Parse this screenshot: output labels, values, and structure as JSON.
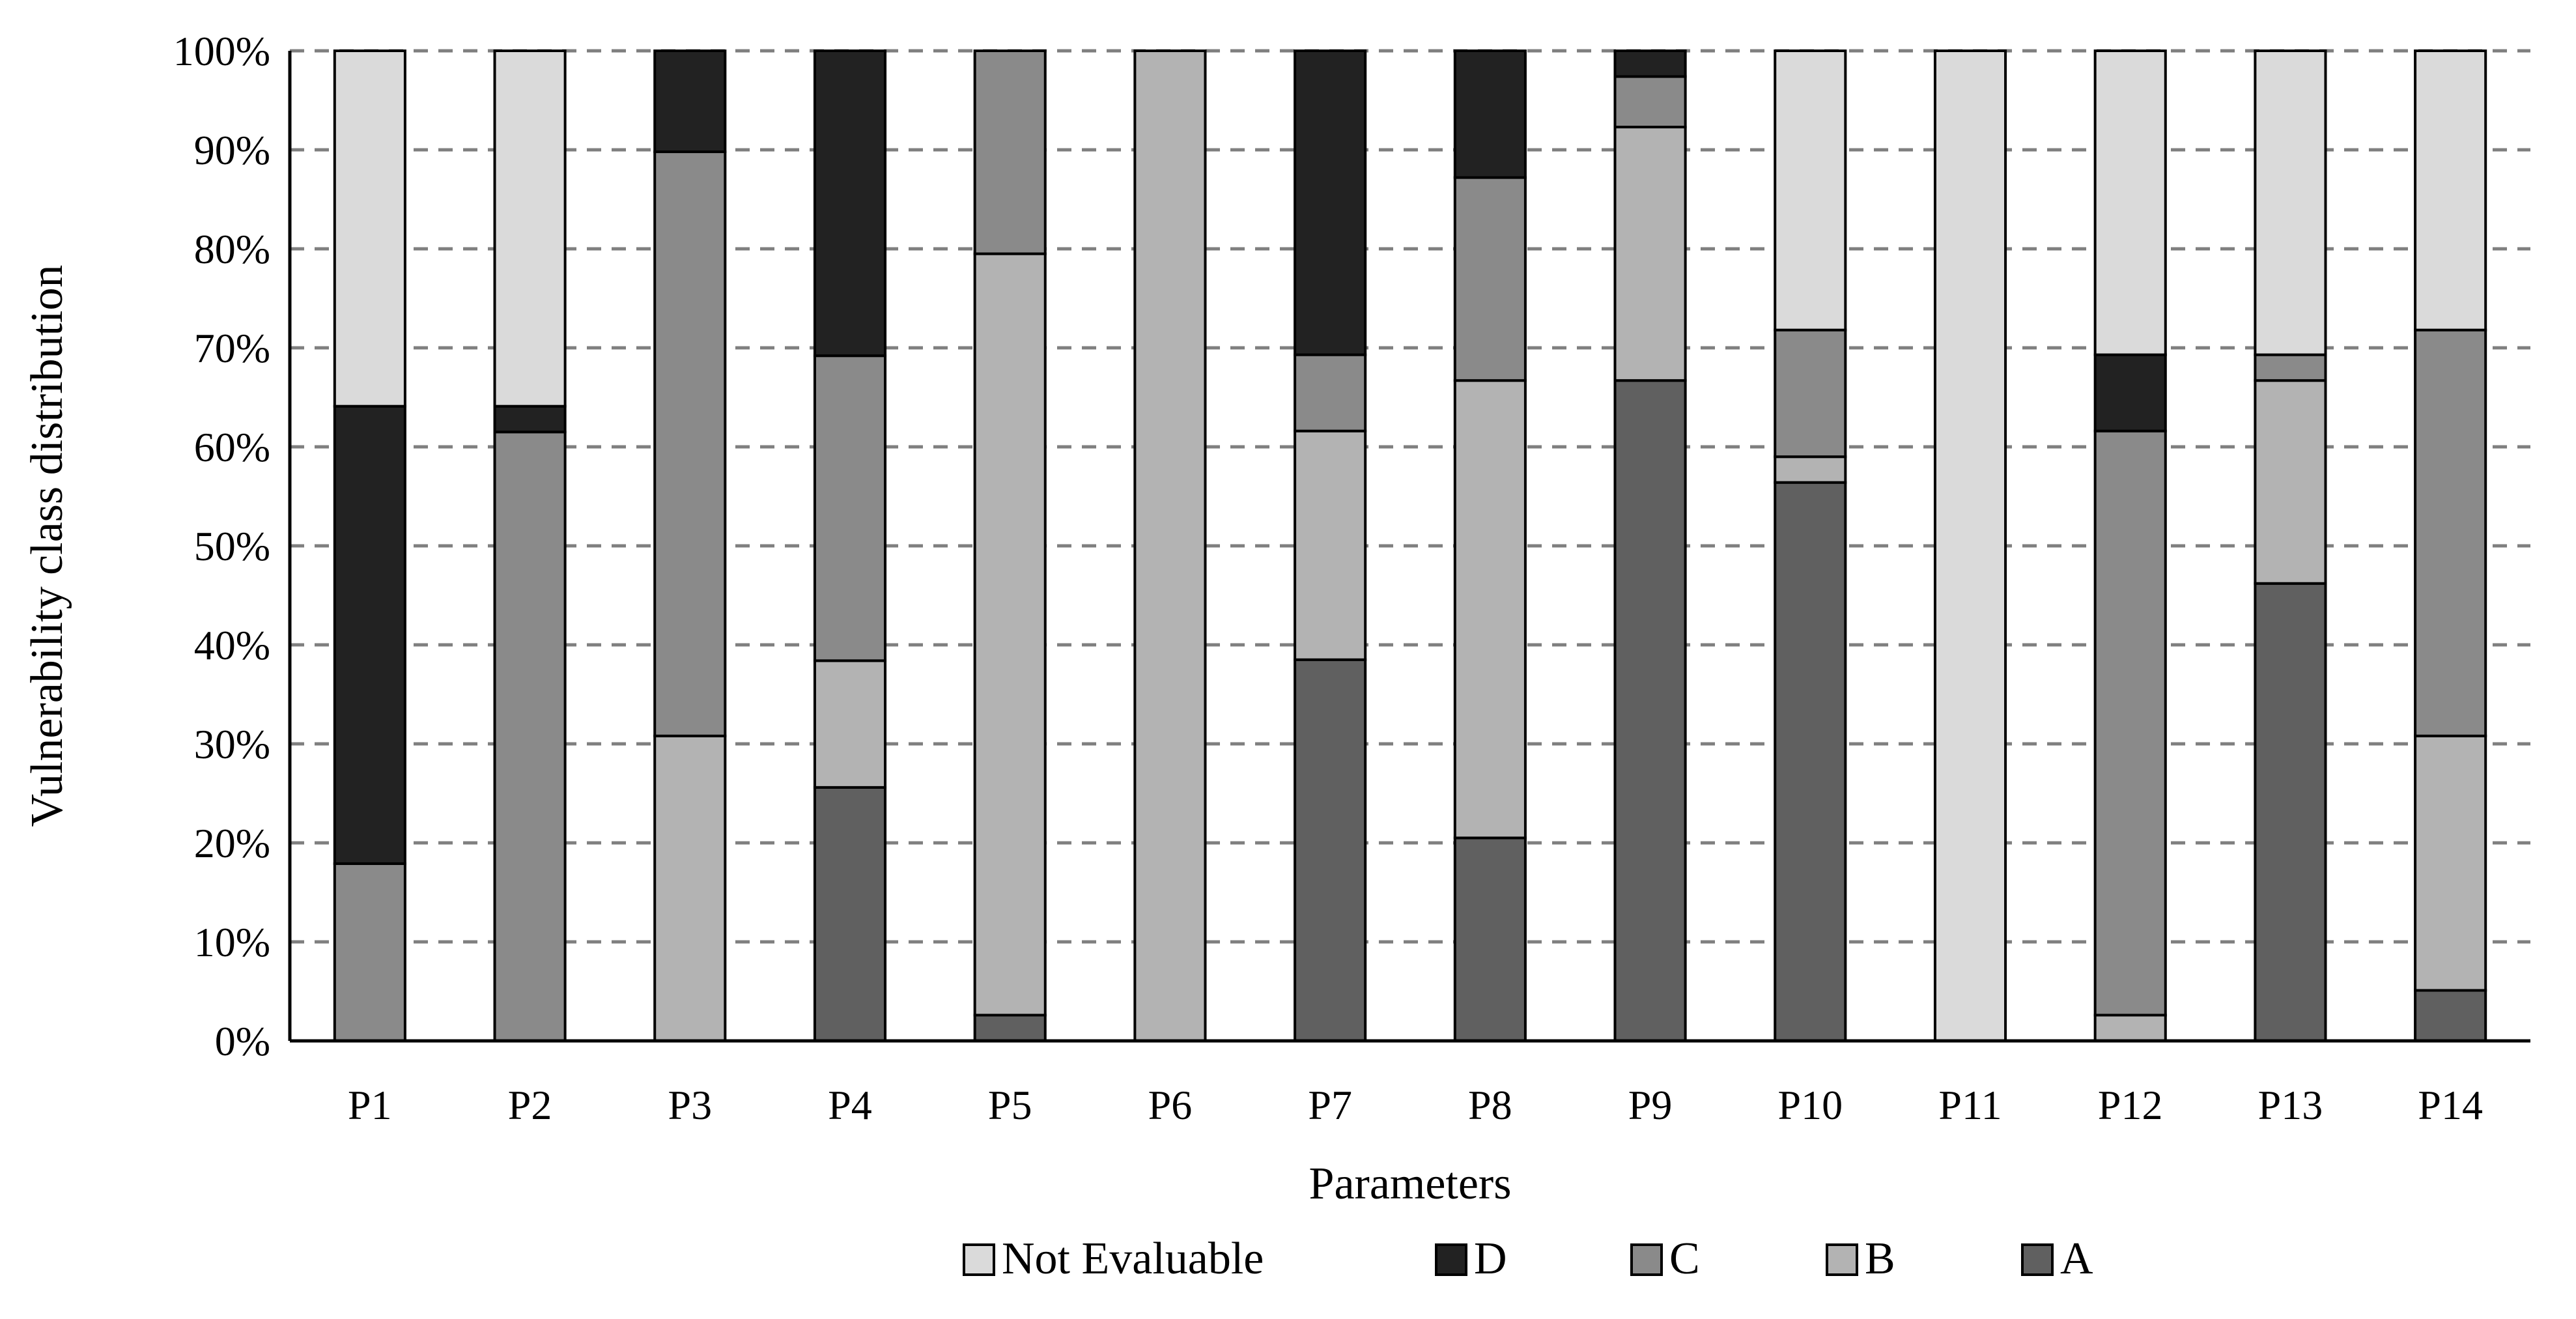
{
  "chart_data": {
    "type": "bar",
    "stacked": true,
    "orientation": "vertical",
    "xlabel": "Parameters",
    "ylabel": "Vulnerability class distribution",
    "ylim": [
      0,
      100
    ],
    "y_ticks": [
      "0%",
      "10%",
      "20%",
      "30%",
      "40%",
      "50%",
      "60%",
      "70%",
      "80%",
      "90%",
      "100%"
    ],
    "grid": "horizontal dashed",
    "legend_position": "bottom",
    "categories": [
      "P1",
      "P2",
      "P3",
      "P4",
      "P5",
      "P6",
      "P7",
      "P8",
      "P9",
      "P10",
      "P11",
      "P12",
      "P13",
      "P14"
    ],
    "series": [
      {
        "name": "A",
        "color": "#606060",
        "values": [
          0,
          0,
          0,
          25.6,
          2.6,
          0,
          38.5,
          20.5,
          66.7,
          56.4,
          0,
          0,
          46.2,
          5.1
        ]
      },
      {
        "name": "B",
        "color": "#b3b3b3",
        "values": [
          0,
          0,
          30.8,
          12.8,
          76.9,
          100,
          23.1,
          46.2,
          25.6,
          2.6,
          0,
          2.6,
          20.5,
          25.7
        ]
      },
      {
        "name": "C",
        "color": "#8a8a8a",
        "values": [
          17.9,
          61.5,
          59.0,
          30.8,
          20.5,
          0,
          7.7,
          20.5,
          5.1,
          12.8,
          0,
          59.0,
          2.6,
          41.0
        ]
      },
      {
        "name": "D",
        "color": "#222222",
        "values": [
          46.2,
          2.6,
          10.2,
          30.8,
          0,
          0,
          30.7,
          12.8,
          2.6,
          0,
          0,
          7.7,
          0,
          0
        ]
      },
      {
        "name": "Not Evaluable",
        "color": "#dadada",
        "values": [
          35.9,
          35.9,
          0,
          0,
          0,
          0,
          0,
          0,
          0,
          28.2,
          100,
          30.7,
          30.7,
          28.2
        ]
      }
    ],
    "legend_order": [
      "Not Evaluable",
      "D",
      "C",
      "B",
      "A"
    ]
  }
}
